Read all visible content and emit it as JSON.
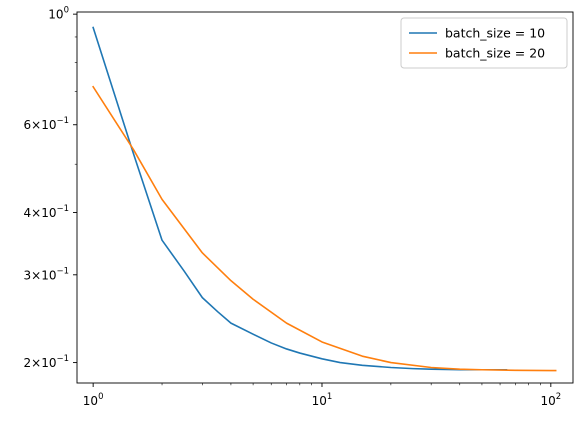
{
  "chart_data": {
    "type": "line",
    "title": "",
    "xlabel": "",
    "ylabel": "",
    "xscale": "log",
    "yscale": "log",
    "xlim": [
      0.85,
      125
    ],
    "ylim": [
      0.182,
      1.01
    ],
    "grid": false,
    "legend_position": "upper right",
    "x_ticks": [
      {
        "value": 1,
        "base": "10",
        "exp": "0"
      },
      {
        "value": 10,
        "base": "10",
        "exp": "1"
      },
      {
        "value": 100,
        "base": "10",
        "exp": "2"
      }
    ],
    "y_ticks": [
      {
        "value": 0.2,
        "mant": "2",
        "base": "10",
        "exp": "−1"
      },
      {
        "value": 0.3,
        "mant": "3",
        "base": "10",
        "exp": "−1"
      },
      {
        "value": 0.4,
        "mant": "4",
        "base": "10",
        "exp": "−1"
      },
      {
        "value": 0.6,
        "mant": "6",
        "base": "10",
        "exp": "−1"
      },
      {
        "value": 1.0,
        "mant": "",
        "base": "10",
        "exp": "0"
      }
    ],
    "series": [
      {
        "name": "batch_size = 10",
        "color": "#1f77b4",
        "x": [
          1,
          1.5,
          2,
          2.5,
          3,
          3.5,
          4,
          5,
          6,
          7,
          8,
          10,
          12,
          15,
          20,
          25,
          30,
          40,
          50,
          64
        ],
        "y": [
          0.94,
          0.525,
          0.352,
          0.305,
          0.27,
          0.253,
          0.24,
          0.228,
          0.219,
          0.213,
          0.209,
          0.2035,
          0.2,
          0.1975,
          0.1955,
          0.1945,
          0.194,
          0.1935,
          0.1935,
          0.1935
        ]
      },
      {
        "name": "batch_size = 20",
        "color": "#ff7f0e",
        "x": [
          1,
          1.5,
          2,
          3,
          4,
          5,
          7,
          10,
          15,
          20,
          30,
          40,
          50,
          70,
          100,
          105
        ],
        "y": [
          0.715,
          0.535,
          0.425,
          0.332,
          0.292,
          0.268,
          0.24,
          0.22,
          0.206,
          0.2,
          0.1955,
          0.194,
          0.1935,
          0.193,
          0.1928,
          0.1928
        ]
      }
    ]
  }
}
